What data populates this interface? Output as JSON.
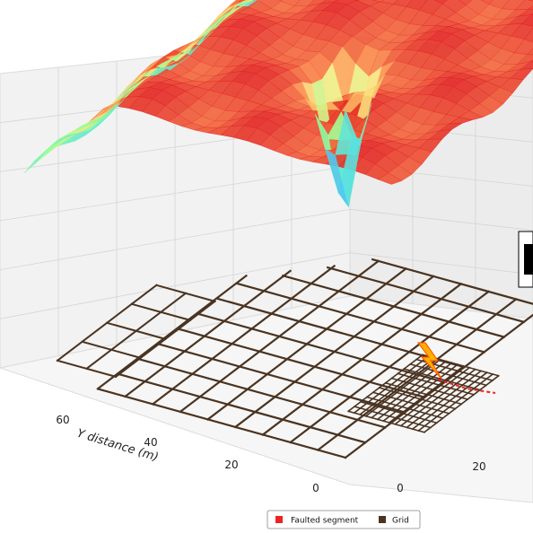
{
  "chart_data": {
    "type": "surface3d",
    "title": "",
    "y_axis": {
      "label": "Y distance (m)",
      "ticks": [
        0,
        20,
        40,
        60
      ]
    },
    "x_axis": {
      "label": "",
      "ticks": [
        0,
        20
      ]
    },
    "colormap": "jet",
    "surface": {
      "description_values": "voltage-like surface over the grid, high plateau with a deep well near the faulted segment",
      "peak_level": 0.95,
      "well_level": 0.05,
      "edge_low_level": 0.1
    },
    "legend": {
      "placement": "bottom-center",
      "items": [
        {
          "label": "Faulted segment",
          "color": "#ee2222"
        },
        {
          "label": "Grid",
          "color": "#4a3320"
        }
      ]
    },
    "markers": {
      "fault_icon": "lightning-bolt-icon",
      "fault_color": "#ffb000"
    },
    "grid_color": "#4a3320"
  }
}
